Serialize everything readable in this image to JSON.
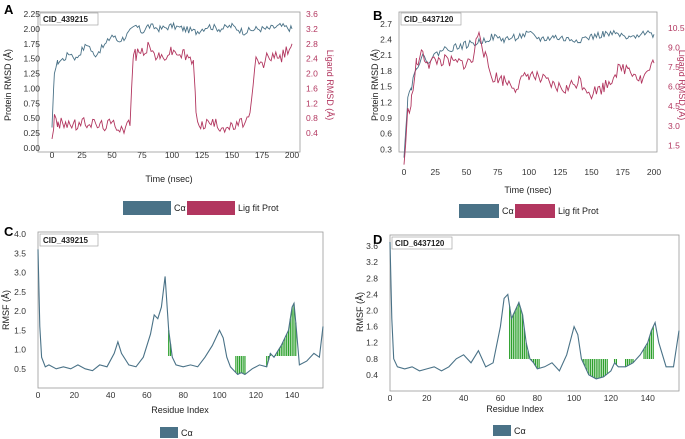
{
  "colors": {
    "calpha": "#4a7287",
    "ligand": "#b2365f",
    "contact": "#2ca02c",
    "frame": "#999999"
  },
  "chart_data": [
    {
      "panel": "A",
      "type": "line",
      "title": "CID_439215",
      "xlabel": "Time (nsec)",
      "ylabel": "Protein RMSD (Å)",
      "ylabel_right": "Ligand RMSD (Å)",
      "xlim": [
        0,
        200
      ],
      "ylim": [
        0,
        2.25
      ],
      "ylim_right": [
        0,
        3.6
      ],
      "xticks": [
        "0",
        "25",
        "50",
        "75",
        "100",
        "125",
        "150",
        "175",
        "200"
      ],
      "yticks": [
        "0.00",
        "0.25",
        "0.50",
        "0.75",
        "1.00",
        "1.25",
        "1.50",
        "1.75",
        "2.00",
        "2.25"
      ],
      "yticks_right": [
        "0.4",
        "0.8",
        "1.2",
        "1.6",
        "2.0",
        "2.4",
        "2.8",
        "3.2",
        "3.6"
      ],
      "legend": [
        "Cα",
        "Lig fit Prot"
      ],
      "series": [
        {
          "name": "Cα",
          "axis": "left",
          "x": [
            0,
            2,
            5,
            10,
            15,
            20,
            25,
            30,
            35,
            40,
            45,
            50,
            55,
            60,
            65,
            70,
            75,
            80,
            90,
            100,
            110,
            120,
            130,
            140,
            150,
            160,
            170,
            180,
            190,
            200
          ],
          "y": [
            0.3,
            1.3,
            1.45,
            1.5,
            1.6,
            1.5,
            1.65,
            1.75,
            1.55,
            1.65,
            1.75,
            1.9,
            1.8,
            1.85,
            1.95,
            2.05,
            1.95,
            2.05,
            2.0,
            2.05,
            2.0,
            1.95,
            2.05,
            2.0,
            2.05,
            1.95,
            2.0,
            2.0,
            2.05,
            2.0
          ]
        },
        {
          "name": "Lig fit Prot",
          "axis": "right",
          "x": [
            0,
            2,
            5,
            10,
            20,
            30,
            40,
            50,
            60,
            65,
            68,
            70,
            75,
            80,
            90,
            100,
            110,
            118,
            120,
            125,
            130,
            140,
            150,
            160,
            165,
            170,
            175,
            180,
            190,
            200
          ],
          "y": [
            0.3,
            0.8,
            0.6,
            0.7,
            0.6,
            0.7,
            0.6,
            0.65,
            0.55,
            0.7,
            2.6,
            2.5,
            2.6,
            2.7,
            2.4,
            2.6,
            2.5,
            2.3,
            0.9,
            0.6,
            0.7,
            0.6,
            0.55,
            0.7,
            0.8,
            2.4,
            2.2,
            2.5,
            2.4,
            2.8
          ]
        }
      ]
    },
    {
      "panel": "B",
      "type": "line",
      "title": "CID_6437120",
      "xlabel": "Time (nsec)",
      "ylabel": "Protein RMSD (Å)",
      "ylabel_right": "Ligand RMSD (Å)",
      "xlim": [
        0,
        200
      ],
      "ylim": [
        0,
        2.85
      ],
      "ylim_right": [
        0,
        11.4
      ],
      "xticks": [
        "0",
        "25",
        "50",
        "75",
        "100",
        "125",
        "150",
        "175",
        "200"
      ],
      "yticks": [
        "0.3",
        "0.6",
        "0.9",
        "1.2",
        "1.5",
        "1.8",
        "2.1",
        "2.4",
        "2.7"
      ],
      "yticks_right": [
        "1.5",
        "3.0",
        "4.5",
        "6.0",
        "7.5",
        "9.0",
        "10.5"
      ],
      "legend": [
        "Cα",
        "Lig fit Prot"
      ],
      "series": [
        {
          "name": "Cα",
          "axis": "left",
          "x": [
            0,
            3,
            6,
            10,
            15,
            20,
            25,
            30,
            40,
            50,
            60,
            70,
            80,
            90,
            100,
            110,
            120,
            130,
            140,
            150,
            160,
            170,
            180,
            190,
            200
          ],
          "y": [
            0.2,
            1.3,
            1.5,
            1.9,
            2.05,
            2.0,
            2.1,
            2.2,
            2.25,
            2.3,
            2.35,
            2.45,
            2.4,
            2.45,
            2.5,
            2.4,
            2.45,
            2.4,
            2.4,
            2.45,
            2.5,
            2.5,
            2.4,
            2.55,
            2.5
          ]
        },
        {
          "name": "Lig fit Prot",
          "axis": "right",
          "x": [
            0,
            3,
            6,
            10,
            15,
            20,
            25,
            30,
            40,
            50,
            55,
            60,
            65,
            70,
            80,
            90,
            100,
            110,
            120,
            130,
            140,
            150,
            160,
            165,
            170,
            180,
            190,
            200
          ],
          "y": [
            0,
            4,
            5,
            7.8,
            8.5,
            7.8,
            8,
            8,
            7.8,
            7.8,
            8,
            10.5,
            8.2,
            6.8,
            6.5,
            6.0,
            7.0,
            6.5,
            6.0,
            5.8,
            6.5,
            5.5,
            6.0,
            6.5,
            7.2,
            7.5,
            6.5,
            7.8
          ]
        }
      ]
    },
    {
      "panel": "C",
      "type": "line",
      "title": "CID_439215",
      "xlabel": "Residue Index",
      "ylabel": "RMSF (Å)",
      "xlim": [
        0,
        157
      ],
      "ylim": [
        0,
        4.0
      ],
      "xticks": [
        "0",
        "20",
        "40",
        "60",
        "80",
        "100",
        "120",
        "140"
      ],
      "yticks": [
        "0.5",
        "1.0",
        "1.5",
        "2.0",
        "2.5",
        "3.0",
        "3.5",
        "4.0"
      ],
      "legend": [
        "Cα"
      ],
      "contact_residues": [
        72,
        73,
        109,
        110,
        111,
        112,
        113,
        114,
        126,
        127,
        128,
        129,
        130,
        131,
        132,
        133,
        134,
        135,
        136,
        137,
        138,
        139,
        140,
        141,
        142
      ],
      "series": [
        {
          "name": "Cα",
          "x": [
            0,
            1,
            2,
            4,
            6,
            10,
            14,
            18,
            22,
            26,
            30,
            34,
            38,
            42,
            44,
            46,
            50,
            54,
            58,
            62,
            64,
            66,
            68,
            70,
            72,
            74,
            76,
            80,
            84,
            88,
            92,
            96,
            100,
            102,
            104,
            106,
            108,
            110,
            112,
            114,
            118,
            122,
            126,
            128,
            130,
            134,
            136,
            138,
            140,
            141,
            142,
            144,
            148,
            152,
            155,
            157
          ],
          "y": [
            3.6,
            1.6,
            0.8,
            0.55,
            0.6,
            0.5,
            0.55,
            0.5,
            0.6,
            0.5,
            0.45,
            0.6,
            0.55,
            0.9,
            1.2,
            0.9,
            0.6,
            0.55,
            0.8,
            1.4,
            1.9,
            1.8,
            2.1,
            2.9,
            1.5,
            0.8,
            0.6,
            0.55,
            0.6,
            0.55,
            0.8,
            1.1,
            1.5,
            1.3,
            0.8,
            0.55,
            0.45,
            0.35,
            0.4,
            0.35,
            0.5,
            0.6,
            0.55,
            0.9,
            0.8,
            1.1,
            1.3,
            1.5,
            2.1,
            2.2,
            1.7,
            0.6,
            0.7,
            0.9,
            0.8,
            1.6
          ]
        }
      ]
    },
    {
      "panel": "D",
      "type": "line",
      "title": "CID_6437120",
      "xlabel": "Residue Index",
      "ylabel": "RMSF (Å)",
      "xlim": [
        0,
        157
      ],
      "ylim": [
        0,
        3.8
      ],
      "xticks": [
        "0",
        "20",
        "40",
        "60",
        "80",
        "100",
        "120",
        "140"
      ],
      "yticks": [
        "0.4",
        "0.8",
        "1.2",
        "1.6",
        "2.0",
        "2.4",
        "2.8",
        "3.2",
        "3.6"
      ],
      "legend": [
        "Cα"
      ],
      "contact_residues": [
        65,
        66,
        67,
        68,
        69,
        70,
        71,
        72,
        73,
        74,
        75,
        76,
        77,
        78,
        79,
        80,
        81,
        95,
        105,
        106,
        107,
        108,
        109,
        110,
        111,
        112,
        113,
        114,
        115,
        116,
        117,
        118,
        122,
        123,
        128,
        129,
        130,
        131,
        132,
        138,
        139,
        140,
        141,
        142,
        143
      ],
      "series": [
        {
          "name": "Cα",
          "x": [
            0,
            1,
            2,
            4,
            8,
            12,
            16,
            20,
            24,
            28,
            32,
            36,
            40,
            44,
            48,
            52,
            56,
            60,
            62,
            64,
            66,
            68,
            70,
            72,
            74,
            76,
            78,
            80,
            84,
            88,
            92,
            96,
            100,
            102,
            104,
            108,
            112,
            116,
            120,
            122,
            124,
            128,
            132,
            136,
            140,
            142,
            144,
            146,
            150,
            154,
            157
          ],
          "y": [
            3.7,
            1.8,
            0.8,
            0.6,
            0.55,
            0.6,
            0.5,
            0.55,
            0.6,
            0.5,
            0.6,
            0.8,
            0.9,
            0.7,
            1.0,
            0.6,
            0.7,
            1.6,
            2.3,
            2.4,
            1.8,
            2.0,
            2.2,
            1.9,
            1.2,
            0.8,
            0.7,
            0.55,
            0.6,
            0.7,
            0.5,
            0.9,
            1.6,
            1.4,
            0.8,
            0.4,
            0.3,
            0.35,
            0.5,
            0.7,
            0.6,
            0.6,
            0.7,
            0.9,
            1.2,
            1.5,
            1.7,
            1.2,
            0.6,
            0.6,
            1.5
          ]
        }
      ]
    }
  ]
}
